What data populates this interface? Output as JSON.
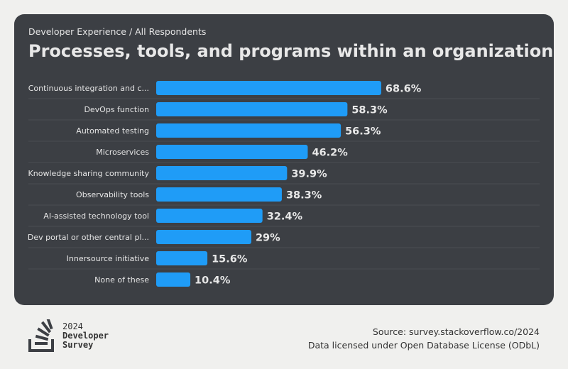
{
  "breadcrumb": "Developer Experience / All Respondents",
  "chart_data": {
    "type": "bar",
    "orientation": "horizontal",
    "title": "Processes, tools, and programs within an organization",
    "categories": [
      "Continuous integration and c...",
      "DevOps function",
      "Automated testing",
      "Microservices",
      "Knowledge sharing community",
      "Observability tools",
      "AI-assisted technology tool",
      "Dev portal or other central pl...",
      "Innersource initiative",
      "None of these"
    ],
    "values": [
      68.6,
      58.3,
      56.3,
      46.2,
      39.9,
      38.3,
      32.4,
      29,
      15.6,
      10.4
    ],
    "value_labels": [
      "68.6%",
      "58.3%",
      "56.3%",
      "46.2%",
      "39.9%",
      "38.3%",
      "32.4%",
      "29%",
      "15.6%",
      "10.4%"
    ],
    "unit": "%",
    "bar_color": "#1f9cf7",
    "grid": false
  },
  "footer": {
    "logo": {
      "year": "2024",
      "line1": "Developer",
      "line2": "Survey"
    },
    "source": "Source: survey.stackoverflow.co/2024",
    "license": "Data licensed under Open Database License (ODbL)"
  }
}
